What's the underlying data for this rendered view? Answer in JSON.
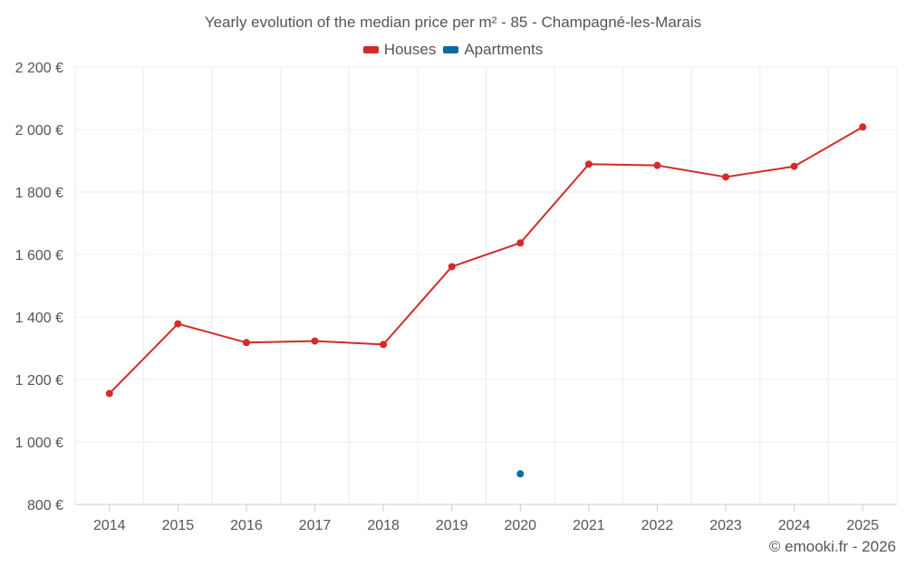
{
  "chart_data": {
    "type": "line",
    "title": "Yearly evolution of the median price per m² - 85 - Champagné-les-Marais",
    "categories": [
      "2014",
      "2015",
      "2016",
      "2017",
      "2018",
      "2019",
      "2020",
      "2021",
      "2022",
      "2023",
      "2024",
      "2025"
    ],
    "y_ticks": [
      "800 €",
      "1 000 €",
      "1 200 €",
      "1 400 €",
      "1 600 €",
      "1 800 €",
      "2 000 €",
      "2 200 €"
    ],
    "ylim": [
      800,
      2200
    ],
    "xlabel": "",
    "ylabel": "",
    "grid": true,
    "legend_position": "top-center",
    "series": [
      {
        "name": "Houses",
        "color": "#d32a2a",
        "values": [
          1155,
          1378,
          1318,
          1323,
          1312,
          1561,
          1637,
          1889,
          1885,
          1848,
          1882,
          2008
        ]
      },
      {
        "name": "Apartments",
        "color": "#0a6aa1",
        "values": [
          null,
          null,
          null,
          null,
          null,
          null,
          898,
          null,
          null,
          null,
          null,
          null
        ]
      }
    ]
  },
  "credit": "© emooki.fr - 2026"
}
